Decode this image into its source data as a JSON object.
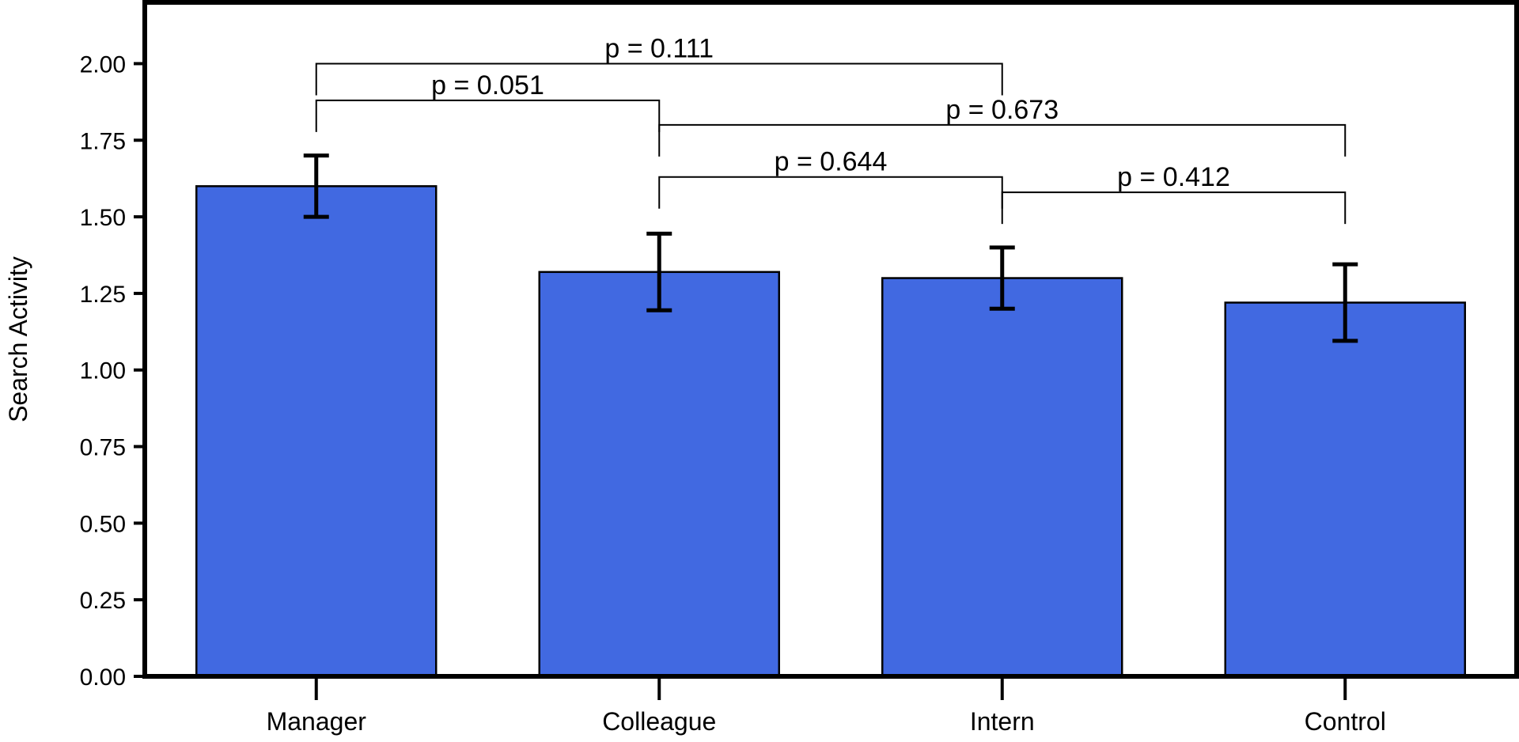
{
  "chart_data": {
    "type": "bar",
    "title": "",
    "xlabel": "",
    "ylabel": "Search Activity",
    "ylim": [
      0,
      2.2
    ],
    "yticks": [
      {
        "value": 0,
        "label": "0.00"
      },
      {
        "value": 0.25,
        "label": "0.25"
      },
      {
        "value": 0.5,
        "label": "0.50"
      },
      {
        "value": 0.75,
        "label": "0.75"
      },
      {
        "value": 1.0,
        "label": "1.00"
      },
      {
        "value": 1.25,
        "label": "1.25"
      },
      {
        "value": 1.5,
        "label": "1.50"
      },
      {
        "value": 1.75,
        "label": "1.75"
      },
      {
        "value": 2.0,
        "label": "2.00"
      }
    ],
    "categories": [
      "Manager",
      "Colleague",
      "Intern",
      "Control"
    ],
    "values": [
      1.6,
      1.32,
      1.3,
      1.22
    ],
    "errors": [
      0.1,
      0.125,
      0.1,
      0.125
    ],
    "bar_color": "#4169E1",
    "grid": false,
    "significance": [
      {
        "from": 0,
        "to": 2,
        "y": 2.0,
        "label": "p = 0.111"
      },
      {
        "from": 0,
        "to": 1,
        "y": 1.88,
        "label": "p = 0.051"
      },
      {
        "from": 1,
        "to": 3,
        "y": 1.8,
        "label": "p = 0.673"
      },
      {
        "from": 1,
        "to": 2,
        "y": 1.63,
        "label": "p = 0.644"
      },
      {
        "from": 2,
        "to": 3,
        "y": 1.58,
        "label": "p = 0.412"
      }
    ]
  }
}
